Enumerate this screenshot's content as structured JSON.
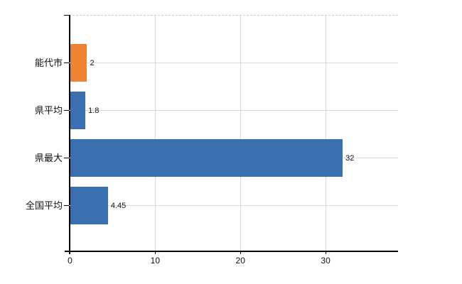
{
  "chart_data": {
    "type": "bar",
    "orientation": "horizontal",
    "title": "",
    "xlabel": "",
    "ylabel": "",
    "categories": [
      "能代市",
      "県平均",
      "県最大",
      "全国平均"
    ],
    "values": [
      2,
      1.8,
      32,
      4.45
    ],
    "value_labels": [
      "2",
      "1.8",
      "32",
      "4.45"
    ],
    "bar_colors": [
      "#ee8331",
      "#3a6fb0",
      "#3a6fb0",
      "#3a6fb0"
    ],
    "highlight_category": "能代市",
    "xticks": [
      0,
      10,
      20,
      30
    ],
    "xtick_labels": [
      "0",
      "10",
      "20",
      "30"
    ],
    "xlim": [
      0,
      38.5
    ],
    "grid": "horizontal-and-vertical",
    "legend": "none",
    "colors": {
      "bar_default": "#3a6fb0",
      "bar_highlight": "#ee8331",
      "grid": "#d8ddd8",
      "axis": "#000000",
      "top_border_dashed": "#cfcfcf",
      "text": "#111111"
    }
  }
}
